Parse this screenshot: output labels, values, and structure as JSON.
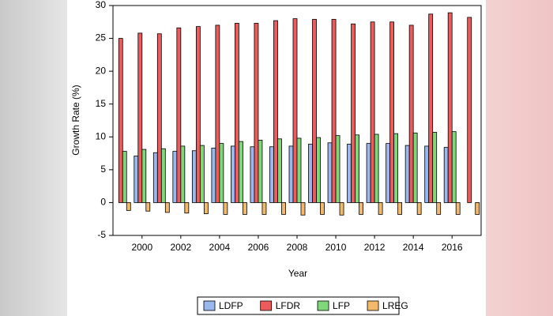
{
  "chart_data": {
    "type": "bar",
    "y_label": "Growth Rate (%)",
    "x_label": "Year",
    "categories": [
      null,
      "2000",
      null,
      "2002",
      null,
      "2004",
      null,
      "2006",
      null,
      "2008",
      null,
      "2010",
      null,
      "2012",
      null,
      "2014",
      null,
      "2016",
      null
    ],
    "series": [
      {
        "name": "LDFP",
        "color": "#9ab8ee",
        "values": [
          null,
          7.1,
          7.6,
          7.8,
          7.9,
          8.3,
          8.6,
          8.5,
          8.5,
          8.6,
          8.9,
          9.1,
          8.9,
          9.0,
          9.0,
          8.7,
          8.6,
          8.4,
          null
        ]
      },
      {
        "name": "LFDR",
        "color": "#ec5c5c",
        "values": [
          25.0,
          25.8,
          25.7,
          26.6,
          26.8,
          27.0,
          27.3,
          27.3,
          27.7,
          28.0,
          27.9,
          27.9,
          27.2,
          27.5,
          27.5,
          27.0,
          28.7,
          28.9,
          28.2
        ]
      },
      {
        "name": "LFP",
        "color": "#80d77a",
        "values": [
          7.8,
          8.1,
          8.2,
          8.6,
          8.7,
          9.0,
          9.3,
          9.5,
          9.7,
          9.8,
          9.9,
          10.2,
          10.3,
          10.4,
          10.5,
          10.6,
          10.7,
          10.8,
          null
        ]
      },
      {
        "name": "LREG",
        "color": "#f2b96b",
        "values": [
          -1.2,
          -1.3,
          -1.5,
          -1.6,
          -1.7,
          -1.8,
          -1.8,
          -1.8,
          -1.8,
          -1.9,
          -1.8,
          -1.9,
          -1.8,
          -1.8,
          -1.8,
          -1.8,
          -1.8,
          -1.8,
          -1.8
        ]
      }
    ],
    "ylim": [
      -5,
      30
    ],
    "yticks": [
      -5,
      0,
      5,
      10,
      15,
      20,
      25,
      30
    ]
  }
}
